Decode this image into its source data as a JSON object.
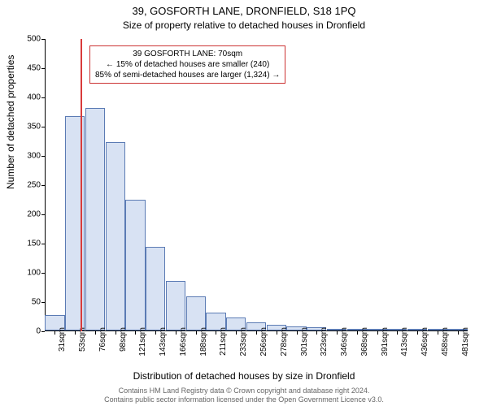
{
  "chart": {
    "type": "histogram",
    "title": "39, GOSFORTH LANE, DRONFIELD, S18 1PQ",
    "subtitle": "Size of property relative to detached houses in Dronfield",
    "ylabel": "Number of detached properties",
    "xlabel": "Distribution of detached houses by size in Dronfield",
    "ylim": [
      0,
      500
    ],
    "ytick_step": 50,
    "bar_fill": "#d8e2f3",
    "bar_border": "#5b7bb4",
    "background_color": "#ffffff",
    "marker": {
      "x_label": "70sqm",
      "color": "#d93a3a",
      "index_after_category": 1
    },
    "annotation": {
      "line1": "39 GOSFORTH LANE: 70sqm",
      "line2": "← 15% of detached houses are smaller (240)",
      "line3": "85% of semi-detached houses are larger (1,324) →",
      "border_color": "#cc3333"
    },
    "categories": [
      "31sqm",
      "53sqm",
      "76sqm",
      "98sqm",
      "121sqm",
      "143sqm",
      "166sqm",
      "188sqm",
      "211sqm",
      "233sqm",
      "256sqm",
      "278sqm",
      "301sqm",
      "323sqm",
      "346sqm",
      "368sqm",
      "391sqm",
      "413sqm",
      "436sqm",
      "458sqm",
      "481sqm"
    ],
    "values": [
      27,
      367,
      380,
      322,
      224,
      143,
      85,
      58,
      30,
      22,
      14,
      10,
      7,
      5,
      3,
      2,
      2,
      1,
      1,
      1,
      1
    ],
    "title_fontsize": 13,
    "subtitle_fontsize": 12,
    "label_fontsize": 12,
    "tick_fontsize": 10
  },
  "footer": {
    "line1": "Contains HM Land Registry data © Crown copyright and database right 2024.",
    "line2": "Contains public sector information licensed under the Open Government Licence v3.0."
  }
}
